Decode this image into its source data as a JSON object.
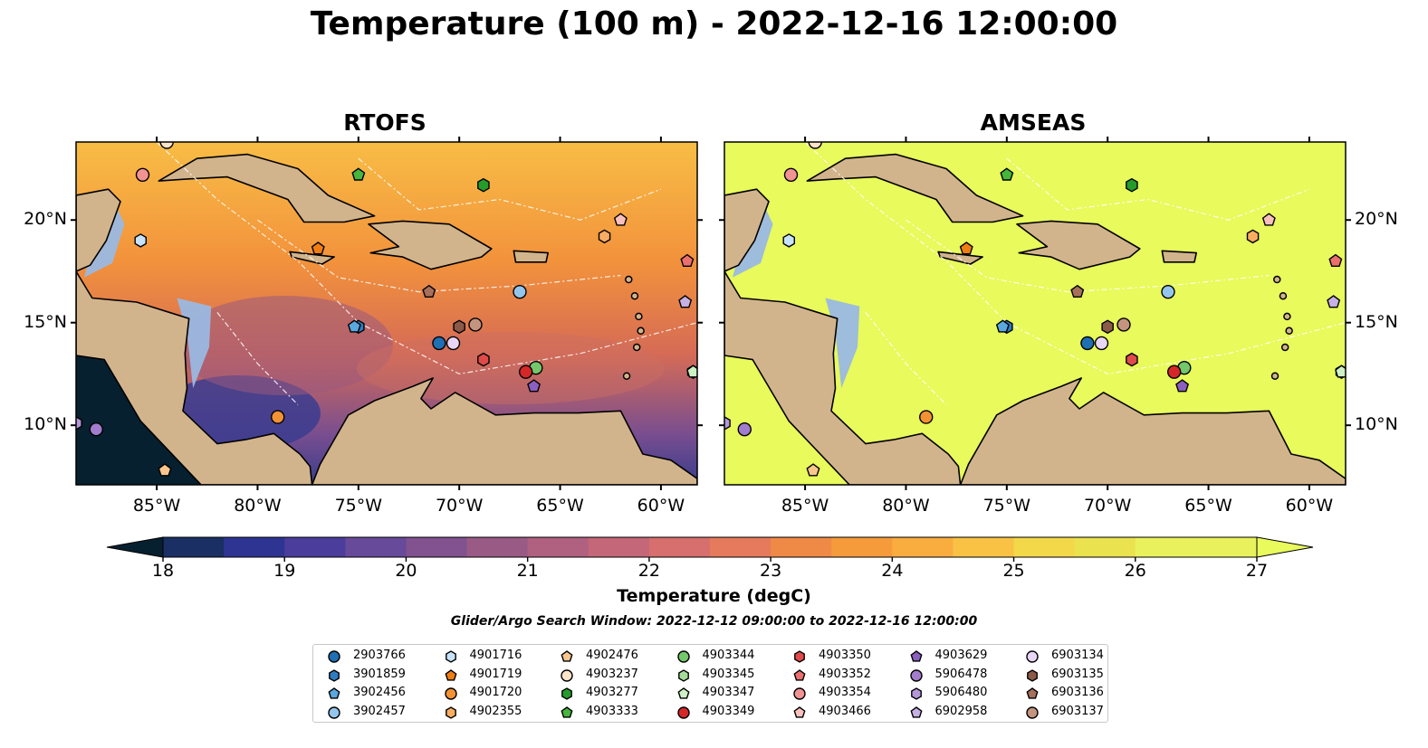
{
  "title": "Temperature (100 m) - 2022-12-16 12:00:00",
  "panels": [
    "RTOFS",
    "AMSEAS"
  ],
  "lon_ticks": [
    "85°W",
    "80°W",
    "75°W",
    "70°W",
    "65°W",
    "60°W"
  ],
  "lat_ticks": [
    "20°N",
    "15°N",
    "10°N"
  ],
  "map_extent": {
    "lon": [
      -89,
      -58.2
    ],
    "lat": [
      7.1,
      23.8
    ]
  },
  "colorbar": {
    "label": "Temperature (degC)",
    "range": [
      18,
      27
    ],
    "step": 0.5,
    "ticks": [
      "18",
      "19",
      "20",
      "21",
      "22",
      "23",
      "24",
      "25",
      "26",
      "27"
    ],
    "extend": "both"
  },
  "search_window": "Glider/Argo Search Window: 2022-12-12 09:00:00 to 2022-12-16 12:00:00",
  "colors": {
    "land": "#d2b48c",
    "shelf": "#9ab8e2",
    "amseas_sea": "#e8fa5c",
    "deep_pacific": "#06202f"
  },
  "chart_data": {
    "type": "map",
    "title": "Temperature (100 m) - 2022-12-16 12:00:00",
    "color_scale": "thermal",
    "floats": [
      {
        "id": "2903766",
        "marker": "circle",
        "color": "#1f6fb4",
        "lon": -71.0,
        "lat": 14.0
      },
      {
        "id": "3901859",
        "marker": "hexagon",
        "color": "#2f7cc0",
        "lon": -75.0,
        "lat": 14.8
      },
      {
        "id": "3902456",
        "marker": "pentagon",
        "color": "#5aa8e0",
        "lon": -75.2,
        "lat": 14.8
      },
      {
        "id": "3902457",
        "marker": "circle",
        "color": "#94c5ec",
        "lon": -67.0,
        "lat": 16.5
      },
      {
        "id": "4901716",
        "marker": "hexagon",
        "color": "#c6e3fb",
        "lon": -85.8,
        "lat": 19.0
      },
      {
        "id": "4901719",
        "marker": "pentagon",
        "color": "#f07d11",
        "lon": -77.0,
        "lat": 18.6
      },
      {
        "id": "4901720",
        "marker": "circle",
        "color": "#f39234",
        "lon": -79.0,
        "lat": 10.4
      },
      {
        "id": "4902355",
        "marker": "hexagon",
        "color": "#f8ad62",
        "lon": -62.8,
        "lat": 19.2
      },
      {
        "id": "4902476",
        "marker": "pentagon",
        "color": "#fbc68d",
        "lon": -84.6,
        "lat": 7.8
      },
      {
        "id": "4903237",
        "marker": "circle",
        "color": "#fde3c8",
        "lon": -84.5,
        "lat": 23.8
      },
      {
        "id": "4903277",
        "marker": "hexagon",
        "color": "#259b2b",
        "lon": -68.8,
        "lat": 21.7
      },
      {
        "id": "4903333",
        "marker": "pentagon",
        "color": "#47b63c",
        "lon": -75.0,
        "lat": 22.2
      },
      {
        "id": "4903344",
        "marker": "circle",
        "color": "#74c76a",
        "lon": -66.2,
        "lat": 12.8
      },
      {
        "id": "4903345",
        "marker": "hexagon",
        "color": "#a4dc98",
        "lon": -58.4,
        "lat": 12.6
      },
      {
        "id": "4903347",
        "marker": "pentagon",
        "color": "#cdf1c4",
        "lon": -58.4,
        "lat": 12.6
      },
      {
        "id": "4903349",
        "marker": "circle",
        "color": "#d62728",
        "lon": -66.7,
        "lat": 12.6
      },
      {
        "id": "4903350",
        "marker": "hexagon",
        "color": "#e04a4a",
        "lon": -68.8,
        "lat": 13.2
      },
      {
        "id": "4903352",
        "marker": "pentagon",
        "color": "#eb6f6f",
        "lon": -58.7,
        "lat": 18.0
      },
      {
        "id": "4903354",
        "marker": "circle",
        "color": "#f29393",
        "lon": -85.7,
        "lat": 22.2
      },
      {
        "id": "4903466",
        "marker": "pentagon",
        "color": "#f9c0bd",
        "lon": -62.0,
        "lat": 20.0
      },
      {
        "id": "4903629",
        "marker": "pentagon",
        "color": "#8b5fbf",
        "lon": -66.3,
        "lat": 11.9
      },
      {
        "id": "5906478",
        "marker": "circle",
        "color": "#a27ccd",
        "lon": -88.0,
        "lat": 9.8
      },
      {
        "id": "5906480",
        "marker": "hexagon",
        "color": "#b497da",
        "lon": -89.0,
        "lat": 10.1
      },
      {
        "id": "6902958",
        "marker": "pentagon",
        "color": "#c6b0e4",
        "lon": -58.8,
        "lat": 16.0
      },
      {
        "id": "6903134",
        "marker": "circle",
        "color": "#e9d5f6",
        "lon": -70.3,
        "lat": 14.0
      },
      {
        "id": "6903135",
        "marker": "hexagon",
        "color": "#8c5a48",
        "lon": -70.0,
        "lat": 14.8
      },
      {
        "id": "6903136",
        "marker": "pentagon",
        "color": "#a6705c",
        "lon": -71.5,
        "lat": 16.5
      },
      {
        "id": "6903137",
        "marker": "circle",
        "color": "#c4947f",
        "lon": -69.2,
        "lat": 14.9
      }
    ]
  }
}
